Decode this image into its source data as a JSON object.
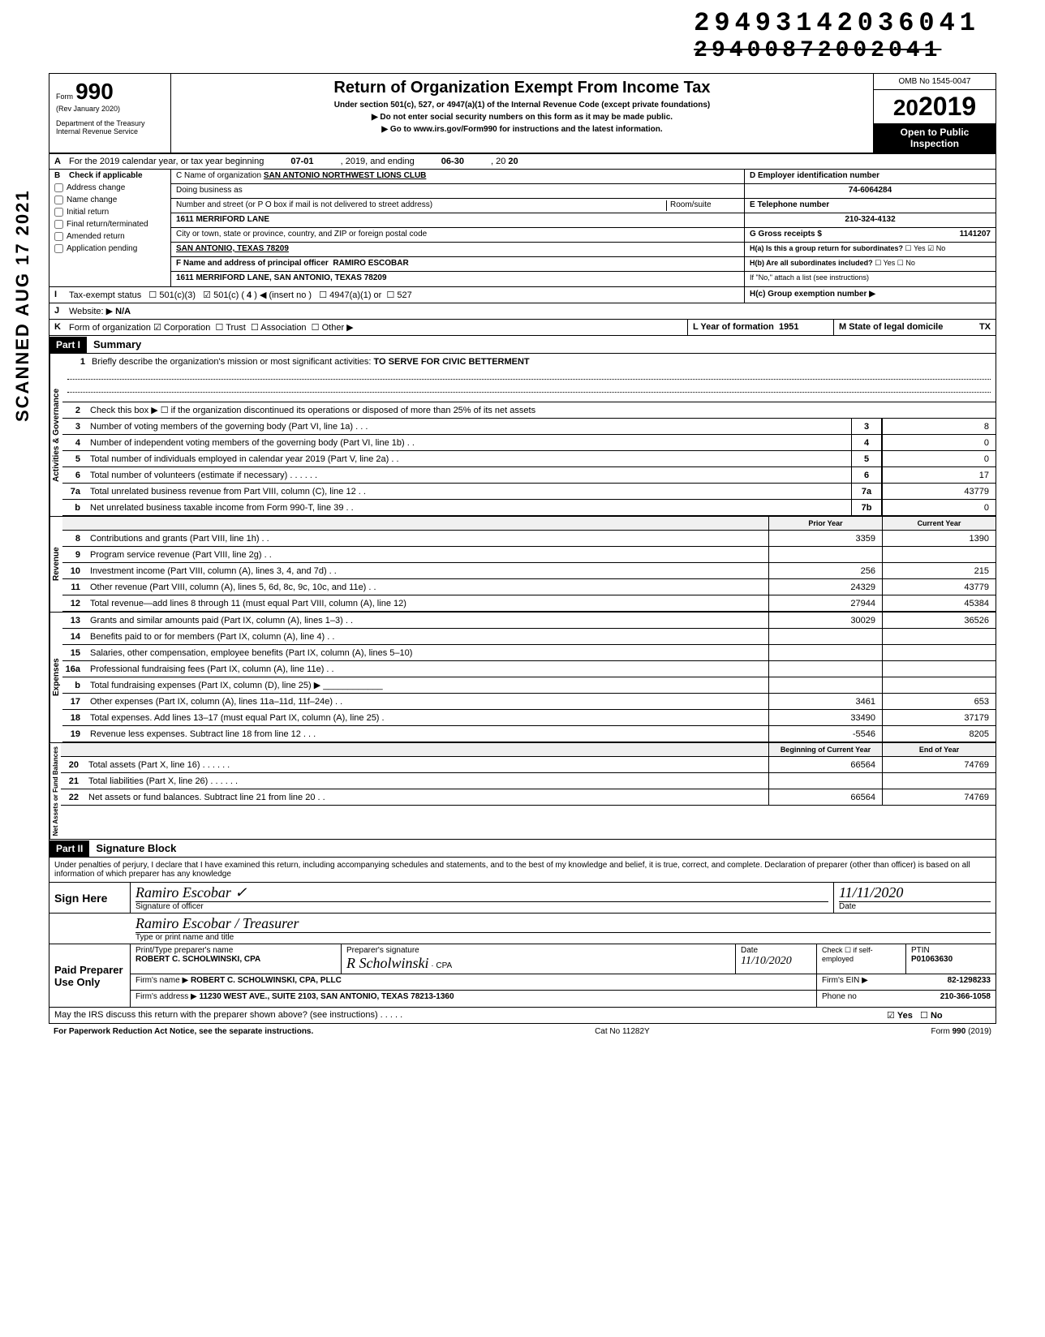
{
  "stamps": {
    "top1": "29493142036041",
    "top2": "29400872002041"
  },
  "side_vertical": "SCANNED AUG 17 2021",
  "header": {
    "form_word": "Form",
    "form_number": "990",
    "rev": "(Rev January 2020)",
    "dept": "Department of the Treasury",
    "irs": "Internal Revenue Service",
    "title": "Return of Organization Exempt From Income Tax",
    "sub1": "Under section 501(c), 527, or 4947(a)(1) of the Internal Revenue Code (except private foundations)",
    "sub2": "▶ Do not enter social security numbers on this form as it may be made public.",
    "sub3": "▶ Go to www.irs.gov/Form990 for instructions and the latest information.",
    "omb": "OMB No 1545-0047",
    "year": "2019",
    "open_public1": "Open to Public",
    "open_public2": "Inspection"
  },
  "lineA": {
    "label": "A",
    "text1": "For the 2019 calendar year, or tax year beginning",
    "begin": "07-01",
    "text2": ", 2019, and ending",
    "end": "06-30",
    "text3": ", 20",
    "endyear": "20"
  },
  "sectionB": {
    "label": "B",
    "title": "Check if applicable",
    "checks": [
      "Address change",
      "Name change",
      "Initial return",
      "Final return/terminated",
      "Amended return",
      "Application pending"
    ]
  },
  "sectionC": {
    "c_label": "C Name of organization",
    "c_val": "SAN ANTONIO NORTHWEST LIONS CLUB",
    "dba_label": "Doing business as",
    "street_label": "Number and street (or P O box if mail is not delivered to street address)",
    "street_val": "1611 MERRIFORD LANE",
    "room_label": "Room/suite",
    "city_label": "City or town, state or province, country, and ZIP or foreign postal code",
    "city_val": "SAN ANTONIO, TEXAS 78209",
    "f_label": "F Name and address of principal officer",
    "f_name": "RAMIRO ESCOBAR",
    "f_addr": "1611 MERRIFORD LANE, SAN ANTONIO, TEXAS 78209"
  },
  "sectionD": {
    "d_label": "D Employer identification number",
    "d_val": "74-6064284",
    "e_label": "E Telephone number",
    "e_val": "210-324-4132",
    "g_label": "G Gross receipts $",
    "g_val": "1141207",
    "ha_label": "H(a) Is this a group return for subordinates?",
    "ha_yes": "Yes",
    "ha_no": "No",
    "hb_label": "H(b) Are all subordinates included?",
    "hb_yes": "Yes",
    "hb_no": "No",
    "h_note": "If \"No,\" attach a list (see instructions)",
    "hc_label": "H(c) Group exemption number ▶"
  },
  "lineI": {
    "label": "I",
    "text": "Tax-exempt status",
    "opt1": "501(c)(3)",
    "opt2": "501(c) (",
    "opt2_val": "4",
    "opt2_b": ") ◀ (insert no )",
    "opt3": "4947(a)(1) or",
    "opt4": "527"
  },
  "lineJ": {
    "label": "J",
    "text": "Website: ▶",
    "val": "N/A"
  },
  "lineK": {
    "label": "K",
    "text": "Form of organization",
    "opts": [
      "Corporation",
      "Trust",
      "Association",
      "Other ▶"
    ],
    "l_label": "L Year of formation",
    "l_val": "1951",
    "m_label": "M State of legal domicile",
    "m_val": "TX"
  },
  "part1": {
    "header": "Part I",
    "title": "Summary",
    "line1_num": "1",
    "line1": "Briefly describe the organization's mission or most significant activities:",
    "line1_val": "TO SERVE FOR CIVIC BETTERMENT",
    "line2_num": "2",
    "line2": "Check this box ▶ ☐ if the organization discontinued its operations or disposed of more than 25% of its net assets",
    "rows_gov": [
      {
        "n": "3",
        "d": "Number of voting members of the governing body (Part VI, line 1a) .  .  .",
        "box": "3",
        "v": "8"
      },
      {
        "n": "4",
        "d": "Number of independent voting members of the governing body (Part VI, line 1b)  .  .",
        "box": "4",
        "v": "0"
      },
      {
        "n": "5",
        "d": "Total number of individuals employed in calendar year 2019 (Part V, line 2a)  .  .",
        "box": "5",
        "v": "0"
      },
      {
        "n": "6",
        "d": "Total number of volunteers (estimate if necessary)  .  .  .  .  .  .",
        "box": "6",
        "v": "17"
      },
      {
        "n": "7a",
        "d": "Total unrelated business revenue from Part VIII, column (C), line 12  .  .",
        "box": "7a",
        "v": "43779"
      },
      {
        "n": "b",
        "d": "Net unrelated business taxable income from Form 990-T, line 39  .  .",
        "box": "7b",
        "v": "0"
      }
    ],
    "col_prior": "Prior Year",
    "col_current": "Current Year",
    "rows_rev": [
      {
        "n": "8",
        "d": "Contributions and grants (Part VIII, line 1h) .  .",
        "p": "3359",
        "c": "1390"
      },
      {
        "n": "9",
        "d": "Program service revenue (Part VIII, line 2g)  .  .",
        "p": "",
        "c": ""
      },
      {
        "n": "10",
        "d": "Investment income (Part VIII, column (A), lines 3, 4, and 7d)  .  .",
        "p": "256",
        "c": "215"
      },
      {
        "n": "11",
        "d": "Other revenue (Part VIII, column (A), lines 5, 6d, 8c, 9c, 10c, and 11e) .  .",
        "p": "24329",
        "c": "43779"
      },
      {
        "n": "12",
        "d": "Total revenue—add lines 8 through 11 (must equal Part VIII, column (A), line 12)",
        "p": "27944",
        "c": "45384"
      }
    ],
    "rows_exp": [
      {
        "n": "13",
        "d": "Grants and similar amounts paid (Part IX, column (A), lines 1–3) .  .",
        "p": "30029",
        "c": "36526"
      },
      {
        "n": "14",
        "d": "Benefits paid to or for members (Part IX, column (A), line 4)  .  .",
        "p": "",
        "c": ""
      },
      {
        "n": "15",
        "d": "Salaries, other compensation, employee benefits (Part IX, column (A), lines 5–10)",
        "p": "",
        "c": ""
      },
      {
        "n": "16a",
        "d": "Professional fundraising fees (Part IX, column (A), line 11e)  .  .",
        "p": "",
        "c": ""
      },
      {
        "n": "b",
        "d": "Total fundraising expenses (Part IX, column (D), line 25) ▶ ____________",
        "p": "",
        "c": ""
      },
      {
        "n": "17",
        "d": "Other expenses (Part IX, column (A), lines 11a–11d, 11f–24e)  .  .",
        "p": "3461",
        "c": "653"
      },
      {
        "n": "18",
        "d": "Total expenses. Add lines 13–17 (must equal Part IX, column (A), line 25)  .",
        "p": "33490",
        "c": "37179"
      },
      {
        "n": "19",
        "d": "Revenue less expenses. Subtract line 18 from line 12  .  .  .",
        "p": "-5546",
        "c": "8205"
      }
    ],
    "col_begin": "Beginning of Current Year",
    "col_end": "End of Year",
    "rows_net": [
      {
        "n": "20",
        "d": "Total assets (Part X, line 16)  .  .  .  .  .  .",
        "p": "66564",
        "c": "74769"
      },
      {
        "n": "21",
        "d": "Total liabilities (Part X, line 26) .  .  .  .  .  .",
        "p": "",
        "c": ""
      },
      {
        "n": "22",
        "d": "Net assets or fund balances. Subtract line 21 from line 20  .  .",
        "p": "66564",
        "c": "74769"
      }
    ],
    "vert_gov": "Activities & Governance",
    "vert_rev": "Revenue",
    "vert_exp": "Expenses",
    "vert_net": "Net Assets or Fund Balances"
  },
  "part2": {
    "header": "Part II",
    "title": "Signature Block",
    "perjury": "Under penalties of perjury, I declare that I have examined this return, including accompanying schedules and statements, and to the best of my knowledge and belief, it is true, correct, and complete. Declaration of preparer (other than officer) is based on all information of which preparer has any knowledge",
    "sign_here": "Sign Here",
    "sig_officer_label": "Signature of officer",
    "sig_date_label": "Date",
    "sig_date_val": "11/11/2020",
    "sig_name_label": "Type or print name and title",
    "sig_name_val": "Ramiro Escobar / Treasurer",
    "paid_prep": "Paid Preparer Use Only",
    "prep_name_label": "Print/Type preparer's name",
    "prep_name_val": "ROBERT C. SCHOLWINSKI, CPA",
    "prep_sig_label": "Preparer's signature",
    "prep_sig_suffix": "CPA",
    "prep_date_label": "Date",
    "prep_date_val": "11/10/2020",
    "prep_self_label": "Check ☐ if self-employed",
    "prep_ptin_label": "PTIN",
    "prep_ptin_val": "P01063630",
    "firm_name_label": "Firm's name ▶",
    "firm_name_val": "ROBERT C. SCHOLWINSKI, CPA, PLLC",
    "firm_ein_label": "Firm's EIN ▶",
    "firm_ein_val": "82-1298233",
    "firm_addr_label": "Firm's address ▶",
    "firm_addr_val": "11230 WEST AVE., SUITE 2103, SAN ANTONIO, TEXAS 78213-1360",
    "phone_label": "Phone no",
    "phone_val": "210-366-1058",
    "discuss": "May the IRS discuss this return with the preparer shown above? (see instructions)  .  .  .  .  .",
    "discuss_yes": "Yes",
    "discuss_no": "No"
  },
  "footer": {
    "left": "For Paperwork Reduction Act Notice, see the separate instructions.",
    "mid": "Cat No 11282Y",
    "right": "Form 990 (2019)"
  }
}
